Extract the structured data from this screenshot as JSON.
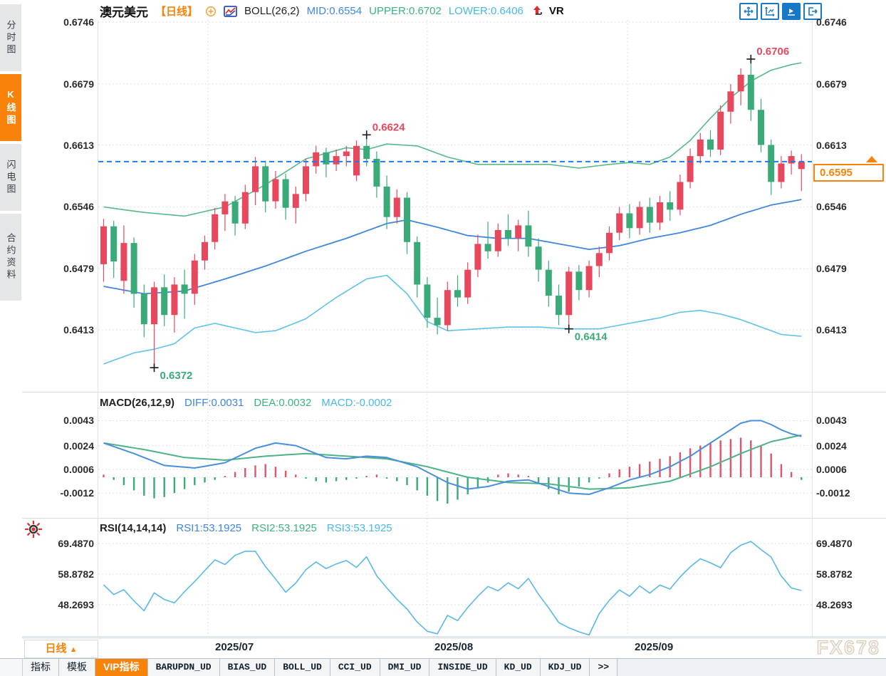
{
  "theme": {
    "accent_orange": "#f8820a",
    "up_red": "#e8485e",
    "down_green": "#3aab78",
    "boll_upper_green": "#57b988",
    "boll_mid_blue": "#3f86dc",
    "boll_lower_cyan": "#5ec2ea",
    "dash_blue": "#1e7ce8",
    "macd_diff_blue": "#4a8fdd",
    "macd_dea_green": "#4db385",
    "hist_red": "#e05568",
    "hist_green": "#3aab78",
    "rsi_blue": "#58b8e8",
    "grid": "#ccd8e2",
    "toolbar_blue": "#1878c8"
  },
  "icons": {
    "header": [
      "target-circle-icon",
      "candlestick-chart-icon",
      "up-arrow-icon"
    ],
    "toolbar": [
      "pan-icon",
      "axis-scale-icon",
      "playback-icon",
      "exit-icon"
    ],
    "left_gutter": [
      "indicator-settings-icon"
    ]
  },
  "sidebar": {
    "items": [
      {
        "label": "分时图",
        "active": false
      },
      {
        "label": "K线图",
        "active": true
      },
      {
        "label": "闪电图",
        "active": false
      },
      {
        "label": "合约资料",
        "active": false
      }
    ]
  },
  "header": {
    "symbol": "澳元美元",
    "period": "【日线】",
    "boll_label": "BOLL(26,2)",
    "mid": "MID:0.6554",
    "upper": "UPPER:0.6702",
    "lower": "LOWER:0.6406",
    "vr": "VR"
  },
  "macd_header": {
    "name": "MACD(26,12,9)",
    "diff": "DIFF:0.0031",
    "dea": "DEA:0.0032",
    "macd": "MACD:-0.0002"
  },
  "rsi_header": {
    "name": "RSI(14,14,14)",
    "rsi1": "RSI1:53.1925",
    "rsi2": "RSI2:53.1925",
    "rsi3": "RSI3:53.1925"
  },
  "bottom": {
    "period_label": "日线",
    "period_arrow": "▲",
    "watermark": "FX678",
    "tabs": [
      "指标",
      "模板",
      "VIP指标",
      "BARUPDN_UD",
      "BIAS_UD",
      "BOLL_UD",
      "CCI_UD",
      "DMI_UD",
      "INSIDE_UD",
      "KD_UD",
      "KDJ_UD",
      ">>"
    ],
    "active_tab_index": 2
  },
  "chart_data": {
    "type": "candlestick-with-indicators",
    "symbol": "澳元美元 (AUD/USD)",
    "period": "日线",
    "current_price": 0.6595,
    "axes": {
      "price_ticks": [
        0.6746,
        0.6679,
        0.6613,
        0.6546,
        0.6479,
        0.6413
      ],
      "macd_ticks": [
        0.0043,
        0.0024,
        0.0006,
        -0.0012
      ],
      "rsi_ticks": [
        69.487,
        58.8782,
        48.2693
      ]
    },
    "months": [
      {
        "label": "2025/07",
        "boundary_index": 10.3
      },
      {
        "label": "2025/08",
        "boundary_index": 32.0
      },
      {
        "label": "2025/09",
        "boundary_index": 51.8
      }
    ],
    "price_markers": [
      {
        "index": 5,
        "price": 0.6372,
        "side": "low",
        "color": "#3aab78"
      },
      {
        "index": 26,
        "price": 0.6624,
        "side": "high",
        "color": "#e8485e"
      },
      {
        "index": 46,
        "price": 0.6414,
        "side": "low",
        "color": "#3aab78"
      },
      {
        "index": 64,
        "price": 0.6706,
        "side": "high",
        "color": "#e8485e"
      }
    ],
    "candles": [
      [
        0.6484,
        0.6533,
        0.6465,
        0.6525
      ],
      [
        0.6525,
        0.6531,
        0.6469,
        0.6487
      ],
      [
        0.6466,
        0.6526,
        0.6452,
        0.6507
      ],
      [
        0.6507,
        0.6513,
        0.6437,
        0.6452
      ],
      [
        0.6452,
        0.6462,
        0.6405,
        0.6419
      ],
      [
        0.6419,
        0.6465,
        0.6372,
        0.6459
      ],
      [
        0.6459,
        0.6473,
        0.6417,
        0.6429
      ],
      [
        0.6429,
        0.647,
        0.641,
        0.6462
      ],
      [
        0.6462,
        0.6478,
        0.6425,
        0.6452
      ],
      [
        0.6452,
        0.6495,
        0.644,
        0.6488
      ],
      [
        0.6488,
        0.6515,
        0.6478,
        0.6508
      ],
      [
        0.6508,
        0.6545,
        0.65,
        0.6538
      ],
      [
        0.6538,
        0.656,
        0.652,
        0.6552
      ],
      [
        0.6552,
        0.6558,
        0.6515,
        0.6528
      ],
      [
        0.6528,
        0.657,
        0.6522,
        0.6562
      ],
      [
        0.6562,
        0.66,
        0.6548,
        0.659
      ],
      [
        0.659,
        0.6596,
        0.654,
        0.6552
      ],
      [
        0.6552,
        0.6585,
        0.6544,
        0.6576
      ],
      [
        0.6576,
        0.6582,
        0.6532,
        0.6545
      ],
      [
        0.6545,
        0.6568,
        0.6528,
        0.656
      ],
      [
        0.656,
        0.6598,
        0.6552,
        0.659
      ],
      [
        0.659,
        0.6612,
        0.6582,
        0.6605
      ],
      [
        0.6605,
        0.661,
        0.6578,
        0.6592
      ],
      [
        0.6592,
        0.6608,
        0.6585,
        0.6601
      ],
      [
        0.6601,
        0.6612,
        0.659,
        0.6606
      ],
      [
        0.658,
        0.6618,
        0.6574,
        0.6612
      ],
      [
        0.6612,
        0.6624,
        0.659,
        0.6598
      ],
      [
        0.6598,
        0.6606,
        0.6556,
        0.6568
      ],
      [
        0.6568,
        0.658,
        0.6522,
        0.6535
      ],
      [
        0.6535,
        0.6565,
        0.6528,
        0.6556
      ],
      [
        0.6556,
        0.6562,
        0.6495,
        0.6508
      ],
      [
        0.6508,
        0.6514,
        0.6448,
        0.6462
      ],
      [
        0.6462,
        0.647,
        0.6415,
        0.6426
      ],
      [
        0.6426,
        0.6448,
        0.6408,
        0.6418
      ],
      [
        0.6418,
        0.6465,
        0.6412,
        0.6456
      ],
      [
        0.6456,
        0.6472,
        0.6438,
        0.6448
      ],
      [
        0.6448,
        0.6486,
        0.6441,
        0.6478
      ],
      [
        0.6478,
        0.6516,
        0.647,
        0.6506
      ],
      [
        0.6506,
        0.653,
        0.649,
        0.6498
      ],
      [
        0.6498,
        0.6528,
        0.6492,
        0.6521
      ],
      [
        0.6521,
        0.6538,
        0.6504,
        0.6512
      ],
      [
        0.6512,
        0.6532,
        0.6498,
        0.6526
      ],
      [
        0.6526,
        0.6542,
        0.6492,
        0.6503
      ],
      [
        0.6503,
        0.6512,
        0.6465,
        0.6478
      ],
      [
        0.6478,
        0.6488,
        0.6438,
        0.645
      ],
      [
        0.645,
        0.6462,
        0.6418,
        0.6429
      ],
      [
        0.6429,
        0.6481,
        0.6414,
        0.6476
      ],
      [
        0.6476,
        0.6483,
        0.6445,
        0.6456
      ],
      [
        0.6456,
        0.6488,
        0.6448,
        0.6482
      ],
      [
        0.6482,
        0.6503,
        0.647,
        0.6496
      ],
      [
        0.6496,
        0.6525,
        0.6488,
        0.6518
      ],
      [
        0.6518,
        0.6546,
        0.651,
        0.6539
      ],
      [
        0.6539,
        0.6549,
        0.6512,
        0.6523
      ],
      [
        0.6523,
        0.6552,
        0.6516,
        0.6546
      ],
      [
        0.6546,
        0.6556,
        0.6518,
        0.6529
      ],
      [
        0.6529,
        0.6558,
        0.6521,
        0.6551
      ],
      [
        0.6551,
        0.6563,
        0.6531,
        0.6543
      ],
      [
        0.6543,
        0.6581,
        0.6537,
        0.6573
      ],
      [
        0.6573,
        0.6609,
        0.6566,
        0.6601
      ],
      [
        0.6601,
        0.6626,
        0.6593,
        0.6619
      ],
      [
        0.6619,
        0.6629,
        0.66,
        0.6608
      ],
      [
        0.6608,
        0.6656,
        0.6602,
        0.6649
      ],
      [
        0.6649,
        0.6679,
        0.6636,
        0.6671
      ],
      [
        0.6671,
        0.6696,
        0.6656,
        0.6689
      ],
      [
        0.6689,
        0.6706,
        0.6639,
        0.6651
      ],
      [
        0.6651,
        0.6663,
        0.6605,
        0.6613
      ],
      [
        0.6613,
        0.6619,
        0.6559,
        0.6573
      ],
      [
        0.6573,
        0.6601,
        0.6566,
        0.6593
      ],
      [
        0.6593,
        0.6607,
        0.6581,
        0.6601
      ],
      [
        0.6587,
        0.6603,
        0.6563,
        0.6595
      ]
    ],
    "boll": {
      "upper": [
        [
          0,
          0.6546
        ],
        [
          4,
          0.654
        ],
        [
          8,
          0.6536
        ],
        [
          12,
          0.6546
        ],
        [
          16,
          0.657
        ],
        [
          20,
          0.6598
        ],
        [
          24,
          0.661
        ],
        [
          26,
          0.6608
        ],
        [
          28,
          0.6614
        ],
        [
          31,
          0.6612
        ],
        [
          34,
          0.66
        ],
        [
          37,
          0.6592
        ],
        [
          41,
          0.6592
        ],
        [
          44,
          0.6592
        ],
        [
          47,
          0.6588
        ],
        [
          50,
          0.6592
        ],
        [
          52,
          0.6594
        ],
        [
          54,
          0.6592
        ],
        [
          56,
          0.66
        ],
        [
          58,
          0.6618
        ],
        [
          60,
          0.6642
        ],
        [
          62,
          0.6664
        ],
        [
          64,
          0.6682
        ],
        [
          66,
          0.6694
        ],
        [
          68,
          0.67
        ],
        [
          69,
          0.6702
        ]
      ],
      "mid": [
        [
          0,
          0.646
        ],
        [
          4,
          0.6452
        ],
        [
          8,
          0.6455
        ],
        [
          12,
          0.6468
        ],
        [
          16,
          0.6482
        ],
        [
          20,
          0.6498
        ],
        [
          24,
          0.6512
        ],
        [
          28,
          0.6528
        ],
        [
          30,
          0.6532
        ],
        [
          33,
          0.6524
        ],
        [
          36,
          0.6515
        ],
        [
          39,
          0.6512
        ],
        [
          42,
          0.6512
        ],
        [
          45,
          0.6506
        ],
        [
          48,
          0.65
        ],
        [
          51,
          0.6504
        ],
        [
          54,
          0.6512
        ],
        [
          57,
          0.6518
        ],
        [
          60,
          0.6526
        ],
        [
          63,
          0.6538
        ],
        [
          66,
          0.6548
        ],
        [
          69,
          0.6554
        ]
      ],
      "lower": [
        [
          0,
          0.6376
        ],
        [
          3,
          0.6388
        ],
        [
          5,
          0.6392
        ],
        [
          7,
          0.6398
        ],
        [
          9,
          0.6415
        ],
        [
          11,
          0.642
        ],
        [
          13,
          0.6415
        ],
        [
          15,
          0.641
        ],
        [
          17,
          0.6412
        ],
        [
          20,
          0.6425
        ],
        [
          23,
          0.6448
        ],
        [
          26,
          0.6468
        ],
        [
          28,
          0.6472
        ],
        [
          30,
          0.6452
        ],
        [
          32,
          0.6422
        ],
        [
          34,
          0.6412
        ],
        [
          37,
          0.6414
        ],
        [
          40,
          0.6416
        ],
        [
          43,
          0.6416
        ],
        [
          46,
          0.6414
        ],
        [
          49,
          0.6414
        ],
        [
          52,
          0.642
        ],
        [
          55,
          0.6426
        ],
        [
          57,
          0.6432
        ],
        [
          59,
          0.6434
        ],
        [
          61,
          0.643
        ],
        [
          63,
          0.6424
        ],
        [
          65,
          0.6416
        ],
        [
          67,
          0.6408
        ],
        [
          69,
          0.6406
        ]
      ]
    },
    "macd": {
      "diff": [
        [
          0,
          0.0026
        ],
        [
          3,
          0.0018
        ],
        [
          6,
          0.0009
        ],
        [
          9,
          0.0007
        ],
        [
          12,
          0.0011
        ],
        [
          15,
          0.0022
        ],
        [
          17,
          0.0026
        ],
        [
          19,
          0.0024
        ],
        [
          22,
          0.0015
        ],
        [
          24,
          0.0014
        ],
        [
          26,
          0.0016
        ],
        [
          28,
          0.0015
        ],
        [
          31,
          0.0008
        ],
        [
          34,
          -0.0004
        ],
        [
          36,
          -0.0009
        ],
        [
          38,
          -0.0007
        ],
        [
          40,
          -0.0003
        ],
        [
          42,
          -0.0002
        ],
        [
          44,
          -0.0007
        ],
        [
          46,
          -0.0012
        ],
        [
          48,
          -0.0013
        ],
        [
          50,
          -0.0008
        ],
        [
          52,
          -0.0002
        ],
        [
          54,
          0.0002
        ],
        [
          56,
          0.0008
        ],
        [
          58,
          0.0016
        ],
        [
          60,
          0.0026
        ],
        [
          62,
          0.0036
        ],
        [
          63,
          0.0041
        ],
        [
          64,
          0.0043
        ],
        [
          65,
          0.0043
        ],
        [
          66,
          0.004
        ],
        [
          67,
          0.0036
        ],
        [
          68,
          0.0033
        ],
        [
          69,
          0.0031
        ]
      ],
      "dea": [
        [
          0,
          0.0026
        ],
        [
          4,
          0.0021
        ],
        [
          8,
          0.0015
        ],
        [
          12,
          0.0013
        ],
        [
          16,
          0.0016
        ],
        [
          20,
          0.0018
        ],
        [
          24,
          0.0016
        ],
        [
          28,
          0.0014
        ],
        [
          32,
          0.0008
        ],
        [
          36,
          0.0
        ],
        [
          40,
          -0.0004
        ],
        [
          44,
          -0.0005
        ],
        [
          48,
          -0.0009
        ],
        [
          52,
          -0.0008
        ],
        [
          56,
          -0.0003
        ],
        [
          60,
          0.0008
        ],
        [
          63,
          0.0018
        ],
        [
          66,
          0.0027
        ],
        [
          69,
          0.0032
        ]
      ],
      "hist": [
        0.0002,
        -0.0002,
        -0.0006,
        -0.001,
        -0.0014,
        -0.0016,
        -0.0015,
        -0.0012,
        -0.0009,
        -0.0006,
        -0.0004,
        -0.0002,
        0.0001,
        0.0004,
        0.0007,
        0.0009,
        0.001,
        0.0008,
        0.0005,
        0.0002,
        -0.0001,
        -0.0003,
        -0.0004,
        -0.0003,
        -0.0002,
        -0.0001,
        0.0001,
        0.0002,
        -0.0001,
        -0.0003,
        -0.0006,
        -0.001,
        -0.0014,
        -0.0018,
        -0.002,
        -0.0017,
        -0.0013,
        -0.0008,
        -0.0004,
        0.0002,
        0.0003,
        0.0002,
        0.0001,
        -0.0004,
        -0.0009,
        -0.0013,
        -0.0011,
        -0.0007,
        -0.0004,
        -0.0001,
        0.0003,
        0.0006,
        0.0008,
        0.001,
        0.0012,
        0.0014,
        0.0016,
        0.0019,
        0.0022,
        0.0024,
        0.0026,
        0.0028,
        0.0029,
        0.003,
        0.0028,
        0.0024,
        0.0018,
        0.001,
        0.0004,
        -0.0002
      ]
    },
    "rsi": [
      55.2,
      51.8,
      53.5,
      49.6,
      46.2,
      52.4,
      50.1,
      48.9,
      52.8,
      56.3,
      60.1,
      63.8,
      62.2,
      65.4,
      66.8,
      66.8,
      61.5,
      57.2,
      52.6,
      55.8,
      60.4,
      63.1,
      60.8,
      62.4,
      63.6,
      61.2,
      64.9,
      58.3,
      54.1,
      50.2,
      46.8,
      42.3,
      39.1,
      38.2,
      44.6,
      42.8,
      47.3,
      51.2,
      54.6,
      53.1,
      55.9,
      53.8,
      57.4,
      51.9,
      47.2,
      42.1,
      40.3,
      38.9,
      37.8,
      45.2,
      49.8,
      53.4,
      51.2,
      54.8,
      52.3,
      55.1,
      53.7,
      57.9,
      61.4,
      64.2,
      62.8,
      61.1,
      66.3,
      68.9,
      70.2,
      67.4,
      64.8,
      58.2,
      54.1,
      53.2
    ]
  }
}
